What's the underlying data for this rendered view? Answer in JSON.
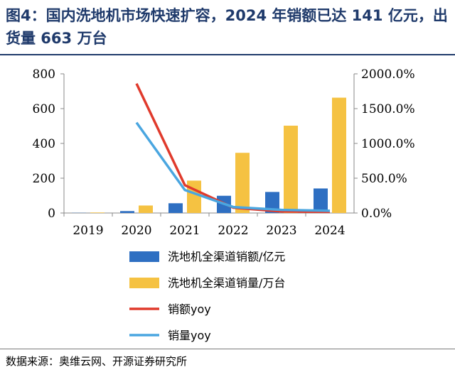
{
  "header": {
    "title": "图4：国内洗地机市场快速扩容，2024 年销额已达 141 亿元，出货量 663 万台"
  },
  "footer": {
    "source": "数据来源：奥维云网、开源证券研究所"
  },
  "chart_data": {
    "type": "bar",
    "categories": [
      "2019",
      "2020",
      "2021",
      "2022",
      "2023",
      "2024"
    ],
    "series": [
      {
        "name": "洗地机全渠道销额/亿元",
        "type": "bar",
        "axis": "left",
        "color": "#2e6fc2",
        "values": [
          1,
          11,
          56,
          99,
          121,
          141
        ]
      },
      {
        "name": "洗地机全渠道销量/万台",
        "type": "bar",
        "axis": "left",
        "color": "#f5c242",
        "values": [
          3,
          43,
          186,
          346,
          502,
          663
        ]
      },
      {
        "name": "销额yoy",
        "type": "line",
        "axis": "right",
        "color": "#e03a2c",
        "values": [
          null,
          1860,
          400,
          77,
          22,
          17
        ]
      },
      {
        "name": "销量yoy",
        "type": "line",
        "axis": "right",
        "color": "#4aa6e0",
        "values": [
          null,
          1300,
          330,
          86,
          45,
          32
        ]
      }
    ],
    "y_left": {
      "min": 0,
      "max": 800,
      "ticks": [
        "0",
        "200",
        "400",
        "600",
        "800"
      ]
    },
    "y_right": {
      "min": 0,
      "max": 2000,
      "ticks": [
        "0.0%",
        "500.0%",
        "1000.0%",
        "1500.0%",
        "2000.0%"
      ]
    },
    "legend": {
      "position": "bottom"
    },
    "grid": false
  }
}
